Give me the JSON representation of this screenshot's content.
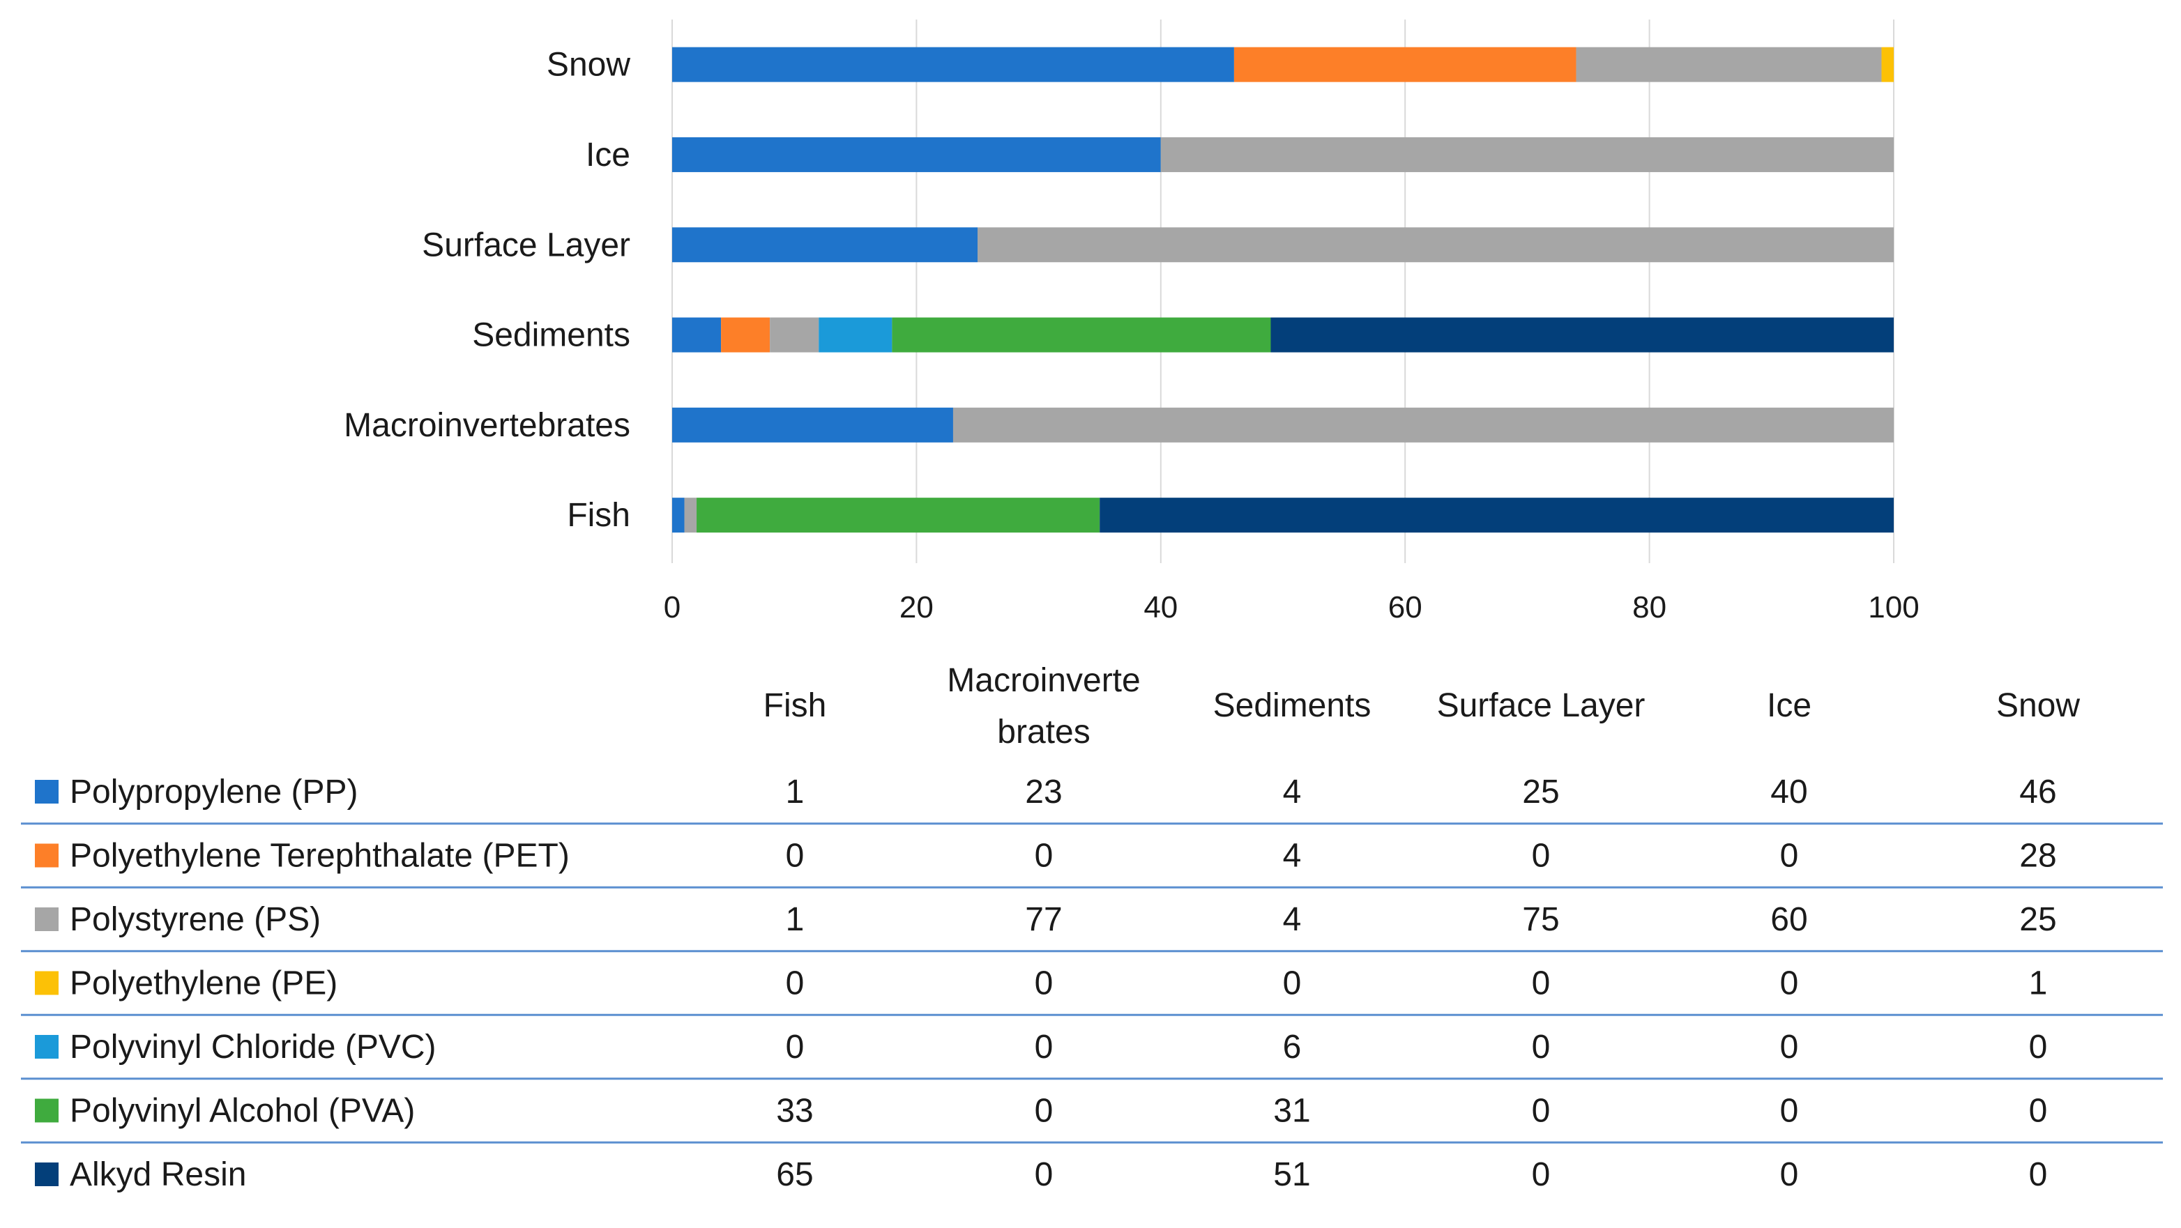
{
  "chart_data": {
    "type": "bar",
    "orientation": "horizontal",
    "stacked": true,
    "title": "",
    "xlabel": "",
    "ylabel": "",
    "xlim": [
      0,
      100
    ],
    "x_ticks": [
      "0",
      "20",
      "40",
      "60",
      "80",
      "100"
    ],
    "grid": true,
    "categories": [
      "Fish",
      "Macroinvertebrates",
      "Sediments",
      "Surface Layer",
      "Ice",
      "Snow"
    ],
    "table_headers": [
      "Fish",
      "Macroinverte brates",
      "Sediments",
      "Surface Layer",
      "Ice",
      "Snow"
    ],
    "series": [
      {
        "name": "Polypropylene (PP)",
        "color": "#1f74cb",
        "values": [
          1,
          23,
          4,
          25,
          40,
          46
        ]
      },
      {
        "name": "Polyethylene Terephthalate (PET)",
        "color": "#fd7f28",
        "values": [
          0,
          0,
          4,
          0,
          0,
          28
        ]
      },
      {
        "name": "Polystyrene (PS)",
        "color": "#a6a6a6",
        "values": [
          1,
          77,
          4,
          75,
          60,
          25
        ]
      },
      {
        "name": "Polyethylene (PE)",
        "color": "#fcc106",
        "values": [
          0,
          0,
          0,
          0,
          0,
          1
        ]
      },
      {
        "name": "Polyvinyl Chloride (PVC)",
        "color": "#1b9ad9",
        "values": [
          0,
          0,
          6,
          0,
          0,
          0
        ]
      },
      {
        "name": "Polyvinyl Alcohol (PVA)",
        "color": "#3fab3e",
        "values": [
          33,
          0,
          31,
          0,
          0,
          0
        ]
      },
      {
        "name": "Alkyd Resin",
        "color": "#033f7a",
        "values": [
          65,
          0,
          51,
          0,
          0,
          0
        ]
      }
    ],
    "legend_position": "data-table-below"
  }
}
